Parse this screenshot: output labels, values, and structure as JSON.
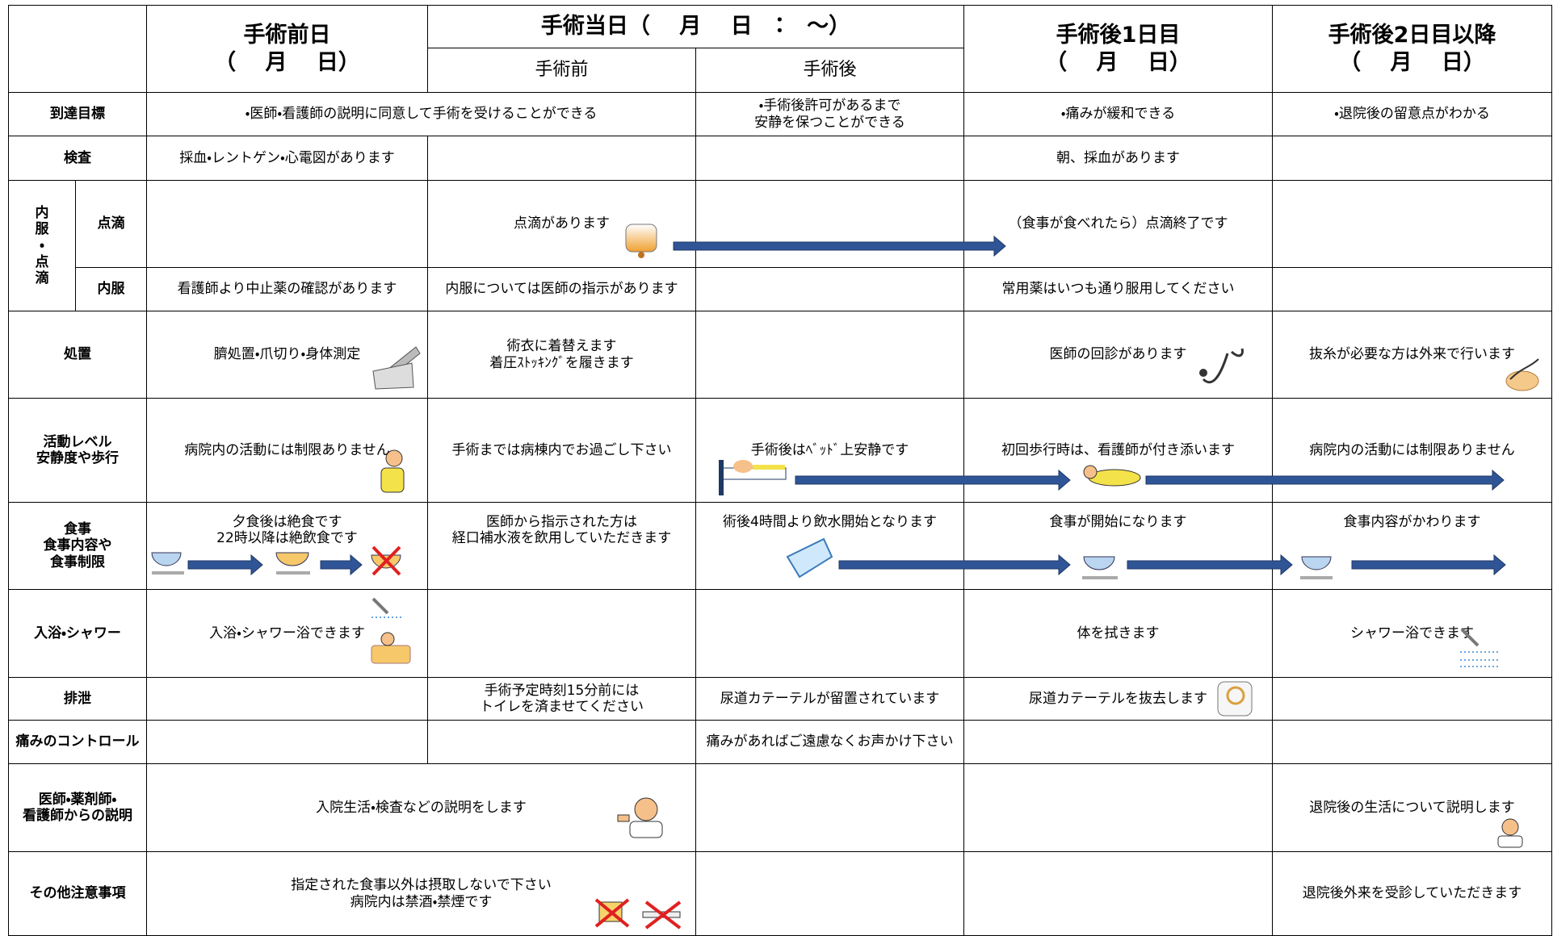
{
  "header": {
    "day_before": {
      "title": "手術前日",
      "date": "（　 月　 日）"
    },
    "surgery_day": {
      "title": "手術当日（　 月　 日　：　～）",
      "before": "手術前",
      "after": "手術後"
    },
    "post_day1": {
      "title": "手術後1日目",
      "date": "（　 月　 日）"
    },
    "post_day2": {
      "title": "手術後2日目以降",
      "date": "（　 月　 日）"
    }
  },
  "rows": [
    {
      "label": "到達目標",
      "day_before_to_surgery_before": "・医師・看護師の説明に同意して手術を受けることができる",
      "surgery_after": "・手術後許可があるまで\n安静を保つことができる",
      "post_day1": "・痛みが緩和できる",
      "post_day2": "・退院後の留意点がわかる"
    },
    {
      "label": "検査",
      "day_before": "採血・レントゲン・心電図があります",
      "post_day1": "朝、採血があります"
    },
    {
      "group": "内\n服\n・\n点\n滴",
      "label": "点滴",
      "surgery_before": "点滴があります",
      "post_day1": "（食事が食べれたら）点滴終了です"
    },
    {
      "label": "内服",
      "day_before": "看護師より中止薬の確認があります",
      "surgery_before": "内服については医師の指示があります",
      "post_day1": "常用薬はいつも通り服用してください"
    },
    {
      "label": "処置",
      "day_before": "臍処置・爪切り・身体測定",
      "surgery_before": "術衣に着替えます\n着圧ｽﾄｯｷﾝｸﾞを履きます",
      "post_day1": "医師の回診があります",
      "post_day2": "抜糸が必要な方は外来で行います"
    },
    {
      "label": "活動レベル\n安静度や歩行",
      "day_before": "病院内の活動には制限ありません",
      "surgery_before": "手術までは病棟内でお過ごし下さい",
      "surgery_after": "手術後はﾍﾞｯﾄﾞ上安静です",
      "post_day1": "初回歩行時は、看護師が付き添います",
      "post_day2": "病院内の活動には制限ありません"
    },
    {
      "label": "食事\n食事内容や\n食事制限",
      "day_before": "夕食後は絶食です\n22時以降は絶飲食です",
      "surgery_before": "医師から指示された方は\n経口補水液を飲用していただきます",
      "surgery_after": "術後4時間より飲水開始となります",
      "post_day1": "食事が開始になります",
      "post_day2": "食事内容がかわります"
    },
    {
      "label": "入浴・シャワー",
      "day_before": "入浴・シャワー浴できます",
      "post_day1": "体を拭きます",
      "post_day2": "シャワー浴できます"
    },
    {
      "label": "排泄",
      "surgery_before": "手術予定時刻15分前には\nトイレを済ませてください",
      "surgery_after": "尿道カテーテルが留置されています",
      "post_day1": "尿道カテーテルを抜去します"
    },
    {
      "label": "痛みのコントロール",
      "surgery_after": "痛みがあればご遠慮なくお声かけ下さい"
    },
    {
      "label": "医師・薬剤師・\n看護師からの説明",
      "day_before_to_surgery_before": "入院生活・検査などの説明をします",
      "post_day2": "退院後の生活について説明します"
    },
    {
      "label": "その他注意事項",
      "day_before_to_surgery_before": "指定された食事以外は摂取しないで下さい\n病院内は禁酒・禁煙です",
      "post_day2": "退院後外来を受診していただきます"
    }
  ]
}
